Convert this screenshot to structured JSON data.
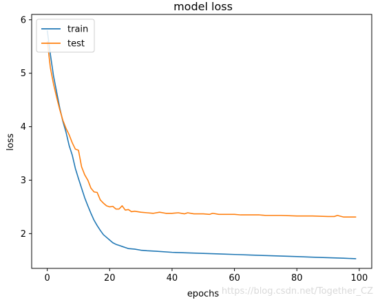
{
  "chart_data": {
    "type": "line",
    "title": "model loss",
    "xlabel": "epochs",
    "ylabel": "loss",
    "xlim": [
      -5,
      104
    ],
    "ylim": [
      1.35,
      6.1
    ],
    "xticks": [
      0,
      20,
      40,
      60,
      80,
      100
    ],
    "yticks": [
      2,
      3,
      4,
      5,
      6
    ],
    "grid": false,
    "legend_position": "upper left",
    "series": [
      {
        "name": "train",
        "color": "#1f77b4",
        "x": [
          0,
          1,
          2,
          3,
          4,
          5,
          6,
          7,
          8,
          9,
          10,
          11,
          12,
          13,
          14,
          15,
          16,
          17,
          18,
          19,
          20,
          21,
          22,
          23,
          24,
          25,
          26,
          28,
          30,
          32,
          35,
          40,
          45,
          50,
          55,
          60,
          65,
          70,
          75,
          80,
          85,
          90,
          95,
          99
        ],
        "y": [
          5.8,
          5.35,
          4.95,
          4.65,
          4.35,
          4.1,
          3.9,
          3.65,
          3.47,
          3.22,
          3.03,
          2.85,
          2.67,
          2.52,
          2.38,
          2.25,
          2.15,
          2.06,
          1.98,
          1.93,
          1.88,
          1.83,
          1.8,
          1.78,
          1.76,
          1.74,
          1.72,
          1.71,
          1.69,
          1.68,
          1.67,
          1.65,
          1.64,
          1.63,
          1.62,
          1.61,
          1.6,
          1.59,
          1.58,
          1.57,
          1.56,
          1.55,
          1.54,
          1.53
        ]
      },
      {
        "name": "test",
        "color": "#ff7f0e",
        "x": [
          0,
          1,
          2,
          3,
          4,
          5,
          6,
          7,
          8,
          9,
          10,
          11,
          12,
          13,
          14,
          15,
          16,
          17,
          18,
          19,
          20,
          21,
          22,
          23,
          24,
          25,
          26,
          27,
          28,
          29,
          30,
          32,
          34,
          36,
          38,
          40,
          42,
          44,
          45,
          47,
          50,
          52,
          53,
          55,
          58,
          60,
          62,
          65,
          68,
          70,
          75,
          80,
          85,
          90,
          92,
          93,
          95,
          99
        ],
        "y": [
          5.6,
          5.1,
          4.8,
          4.55,
          4.32,
          4.12,
          3.97,
          3.85,
          3.7,
          3.58,
          3.56,
          3.25,
          3.1,
          3.0,
          2.85,
          2.78,
          2.77,
          2.63,
          2.57,
          2.52,
          2.5,
          2.51,
          2.46,
          2.46,
          2.52,
          2.44,
          2.45,
          2.41,
          2.42,
          2.41,
          2.4,
          2.39,
          2.38,
          2.4,
          2.38,
          2.38,
          2.39,
          2.37,
          2.39,
          2.37,
          2.37,
          2.36,
          2.38,
          2.36,
          2.36,
          2.36,
          2.35,
          2.35,
          2.35,
          2.34,
          2.34,
          2.33,
          2.33,
          2.32,
          2.32,
          2.34,
          2.31,
          2.31
        ]
      }
    ]
  },
  "watermark": "https://blog.csdn.net/Together_CZ"
}
